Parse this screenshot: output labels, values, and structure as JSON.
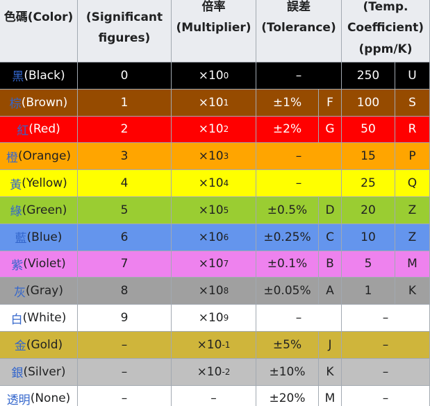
{
  "table": {
    "headers": [
      {
        "lines": [
          "色碼(Color)"
        ]
      },
      {
        "lines": [
          "(Significant",
          "figures)"
        ]
      },
      {
        "lines": [
          "倍率",
          "(Multiplier)"
        ]
      },
      {
        "lines": [
          "誤差",
          "(Tolerance)"
        ]
      },
      {
        "lines": [
          "(Temp.",
          "Coefficient)",
          "(ppm/K)"
        ]
      }
    ],
    "rows": [
      {
        "zh": "黑",
        "en": "(Black)",
        "color": "#000000",
        "text_color": "#ffffff",
        "digit": "0",
        "multiplier": {
          "base": "×10",
          "exp": "0"
        },
        "tolerance": "–",
        "tolerance_code": null,
        "tempco": "250",
        "tempco_code": "U"
      },
      {
        "zh": "棕",
        "en": "(Brown)",
        "color": "#964b00",
        "text_color": "#ffffff",
        "digit": "1",
        "multiplier": {
          "base": "×10",
          "exp": "1"
        },
        "tolerance": "±1%",
        "tolerance_code": "F",
        "tempco": "100",
        "tempco_code": "S"
      },
      {
        "zh": "紅",
        "en": "(Red)",
        "color": "#ff0000",
        "text_color": "#ffffff",
        "digit": "2",
        "multiplier": {
          "base": "×10",
          "exp": "2"
        },
        "tolerance": "±2%",
        "tolerance_code": "G",
        "tempco": "50",
        "tempco_code": "R"
      },
      {
        "zh": "橙",
        "en": "(Orange)",
        "color": "#ffa500",
        "text_color": "#202122",
        "digit": "3",
        "multiplier": {
          "base": "×10",
          "exp": "3"
        },
        "tolerance": "–",
        "tolerance_code": null,
        "tempco": "15",
        "tempco_code": "P"
      },
      {
        "zh": "黃",
        "en": "(Yellow)",
        "color": "#ffff00",
        "text_color": "#202122",
        "digit": "4",
        "multiplier": {
          "base": "×10",
          "exp": "4"
        },
        "tolerance": "–",
        "tolerance_code": null,
        "tempco": "25",
        "tempco_code": "Q"
      },
      {
        "zh": "綠",
        "en": "(Green)",
        "color": "#9acd32",
        "text_color": "#202122",
        "digit": "5",
        "multiplier": {
          "base": "×10",
          "exp": "5"
        },
        "tolerance": "±0.5%",
        "tolerance_code": "D",
        "tempco": "20",
        "tempco_code": "Z"
      },
      {
        "zh": "藍",
        "en": "(Blue)",
        "color": "#6495ed",
        "text_color": "#202122",
        "digit": "6",
        "multiplier": {
          "base": "×10",
          "exp": "6"
        },
        "tolerance": "±0.25%",
        "tolerance_code": "C",
        "tempco": "10",
        "tempco_code": "Z"
      },
      {
        "zh": "紫",
        "en": "(Violet)",
        "color": "#ee82ee",
        "text_color": "#202122",
        "digit": "7",
        "multiplier": {
          "base": "×10",
          "exp": "7"
        },
        "tolerance": "±0.1%",
        "tolerance_code": "B",
        "tempco": "5",
        "tempco_code": "M"
      },
      {
        "zh": "灰",
        "en": "(Gray)",
        "color": "#a0a0a0",
        "text_color": "#202122",
        "digit": "8",
        "multiplier": {
          "base": "×10",
          "exp": "8"
        },
        "tolerance": "±0.05%",
        "tolerance_code": "A",
        "tempco": "1",
        "tempco_code": "K"
      },
      {
        "zh": "白",
        "en": "(White)",
        "color": "#ffffff",
        "text_color": "#202122",
        "digit": "9",
        "multiplier": {
          "base": "×10",
          "exp": "9"
        },
        "tolerance": "–",
        "tolerance_code": null,
        "tempco": "–",
        "tempco_code": null
      },
      {
        "zh": "金",
        "en": "(Gold)",
        "color": "#cfb53b",
        "text_color": "#202122",
        "digit": "–",
        "multiplier": {
          "base": "×10",
          "exp": "-1"
        },
        "tolerance": "±5%",
        "tolerance_code": "J",
        "tempco": "–",
        "tempco_code": null
      },
      {
        "zh": "銀",
        "en": "(Silver)",
        "color": "#c0c0c0",
        "text_color": "#202122",
        "digit": "–",
        "multiplier": {
          "base": "×10",
          "exp": "-2"
        },
        "tolerance": "±10%",
        "tolerance_code": "K",
        "tempco": "–",
        "tempco_code": null
      },
      {
        "zh": "透明",
        "en": "(None)",
        "color": "#ffffff",
        "text_color": "#202122",
        "digit": "–",
        "multiplier": "–",
        "tolerance": "±20%",
        "tolerance_code": "M",
        "tempco": "–",
        "tempco_code": null
      }
    ]
  }
}
